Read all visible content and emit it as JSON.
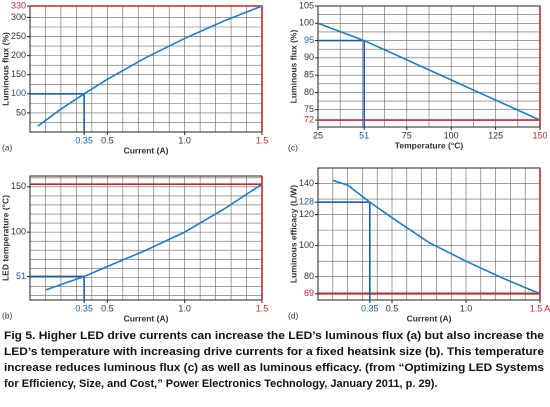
{
  "chart_data": [
    {
      "type": "line",
      "panel": "(a)",
      "xlabel": "Current (A)",
      "ylabel": "Luminous flux (%)",
      "x": [
        0.05,
        0.2,
        0.35,
        0.5,
        0.75,
        1.0,
        1.25,
        1.5
      ],
      "values": [
        15,
        60,
        100,
        138,
        195,
        245,
        290,
        330
      ],
      "color": "#1f7cc4",
      "xlim": [
        0,
        1.5
      ],
      "ylim": [
        0,
        330
      ],
      "xticks": [
        0.35,
        0.5,
        {
          "value": 1,
          "label": "1.0"
        },
        1.5
      ],
      "yticks": [
        50,
        100,
        150,
        200,
        250,
        300,
        330
      ],
      "xgrid": [
        0.1,
        0.2,
        0.3,
        0.4,
        0.5,
        0.6,
        0.7,
        0.8,
        0.9,
        1,
        1.1,
        1.2,
        1.3,
        1.4
      ],
      "ygrid": [
        25,
        50,
        75,
        100,
        125,
        150,
        175,
        200,
        225,
        250,
        275,
        300
      ],
      "highlight": {
        "x": 0.35,
        "y": 100
      },
      "limits": {
        "x": 1.5,
        "y": 330
      }
    },
    {
      "type": "line",
      "panel": "(c)",
      "xlabel": "Temperature (°C)",
      "ylabel": "Luminous flux (%)",
      "x": [
        25,
        51,
        150
      ],
      "values": [
        100,
        95,
        72
      ],
      "color": "#1f7cc4",
      "xlim": [
        25,
        150
      ],
      "ylim": [
        70,
        105
      ],
      "xticks": [
        25,
        51,
        75,
        100,
        125,
        150
      ],
      "yticks": [
        72,
        75,
        80,
        85,
        90,
        95,
        100,
        105
      ],
      "xgrid": [
        37.5,
        50,
        62.5,
        75,
        87.5,
        100,
        112.5,
        125,
        137.5
      ],
      "ygrid": [
        75,
        77.5,
        80,
        82.5,
        85,
        87.5,
        90,
        92.5,
        95,
        97.5,
        100,
        102.5
      ],
      "highlight": {
        "x": 51,
        "y": 95
      },
      "limits": {
        "x": 150,
        "y": 72
      }
    },
    {
      "type": "line",
      "panel": "(b)",
      "xlabel": "Current (A)",
      "ylabel": "LED temperature (°C)",
      "x": [
        0.1,
        0.35,
        0.5,
        0.75,
        1.0,
        1.25,
        1.5
      ],
      "values": [
        36,
        51,
        62,
        80,
        100,
        125,
        153
      ],
      "color": "#1f7cc4",
      "xlim": [
        0,
        1.5
      ],
      "ylim": [
        25,
        162
      ],
      "xticks": [
        0.35,
        0.5,
        {
          "value": 1,
          "label": "1.0"
        },
        1.5
      ],
      "yticks": [
        51,
        100,
        150
      ],
      "xgrid": [
        0.1,
        0.2,
        0.3,
        0.4,
        0.5,
        0.6,
        0.7,
        0.8,
        0.9,
        1,
        1.1,
        1.2,
        1.3,
        1.4
      ],
      "ygrid": [
        30,
        40,
        50,
        60,
        70,
        80,
        90,
        100,
        110,
        120,
        130,
        140,
        150,
        160
      ],
      "highlight": {
        "x": 0.35,
        "y": 51
      },
      "limits": {
        "x": 1.5,
        "y": 153
      }
    },
    {
      "type": "line",
      "panel": "(d)",
      "xlabel": "Current (A)",
      "ylabel": "Luminous efficacy (L/W)",
      "x": [
        0.1,
        0.2,
        0.35,
        0.5,
        0.75,
        1.0,
        1.25,
        1.5
      ],
      "values": [
        142,
        139,
        128,
        118,
        102,
        90,
        79,
        69
      ],
      "color": "#1f7cc4",
      "xlim": [
        0,
        1.5
      ],
      "ylim": [
        65,
        150
      ],
      "xticks": [
        0.35,
        0.5,
        {
          "value": 1,
          "label": "1.0"
        },
        {
          "value": 1.5,
          "label": "1.5 A"
        }
      ],
      "yticks": [
        69,
        80,
        100,
        120,
        128,
        140
      ],
      "xgrid": [
        0.1,
        0.2,
        0.3,
        0.4,
        0.5,
        0.6,
        0.7,
        0.8,
        0.9,
        1,
        1.1,
        1.2,
        1.3,
        1.4
      ],
      "ygrid": [
        70,
        80,
        90,
        100,
        110,
        120,
        130,
        140
      ],
      "highlight": {
        "x": 0.35,
        "y": 128
      },
      "limits": {
        "x": 1.5,
        "y": 69
      }
    }
  ],
  "caption": [
    "Fig 5. Higher LED drive currents can increase the LED’s luminous flux (a) but also increase the",
    "LED’s temperature with increasing drive currents for a fixed heatsink size (b). This temperature",
    "increase reduces luminous flux (c) as well as luminous efficacy. (from “Optimizing LED Systems",
    "for Efficiency, Size, and Cost,” Power Electronics Technology, January 2011, p. 29)."
  ]
}
